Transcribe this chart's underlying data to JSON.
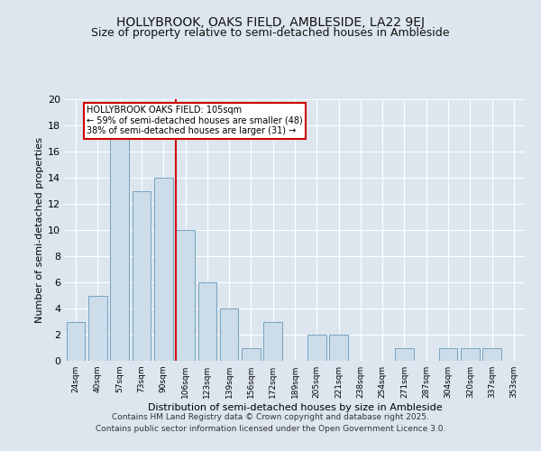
{
  "title": "HOLLYBROOK, OAKS FIELD, AMBLESIDE, LA22 9EJ",
  "subtitle": "Size of property relative to semi-detached houses in Ambleside",
  "xlabel": "Distribution of semi-detached houses by size in Ambleside",
  "ylabel": "Number of semi-detached properties",
  "bar_labels": [
    "24sqm",
    "40sqm",
    "57sqm",
    "73sqm",
    "90sqm",
    "106sqm",
    "123sqm",
    "139sqm",
    "156sqm",
    "172sqm",
    "189sqm",
    "205sqm",
    "221sqm",
    "238sqm",
    "254sqm",
    "271sqm",
    "287sqm",
    "304sqm",
    "320sqm",
    "337sqm",
    "353sqm"
  ],
  "bar_values": [
    3,
    5,
    17,
    13,
    14,
    10,
    6,
    4,
    1,
    3,
    0,
    2,
    2,
    0,
    0,
    1,
    0,
    1,
    1,
    1,
    0
  ],
  "bar_color": "#ccdce8",
  "bar_edge_color": "#6699bb",
  "red_line_index": 5,
  "red_line_label": "HOLLYBROOK OAKS FIELD: 105sqm",
  "annotation_line1": "← 59% of semi-detached houses are smaller (48)",
  "annotation_line2": "38% of semi-detached houses are larger (31) →",
  "annotation_box_color": "#ffffff",
  "annotation_box_edge": "#cc0000",
  "ylim": [
    0,
    20
  ],
  "yticks": [
    0,
    2,
    4,
    6,
    8,
    10,
    12,
    14,
    16,
    18,
    20
  ],
  "footer1": "Contains HM Land Registry data © Crown copyright and database right 2025.",
  "footer2": "Contains public sector information licensed under the Open Government Licence 3.0.",
  "background_color": "#dde6ee",
  "plot_background": "#dde6ee",
  "grid_color": "#ffffff",
  "title_fontsize": 10,
  "subtitle_fontsize": 9
}
